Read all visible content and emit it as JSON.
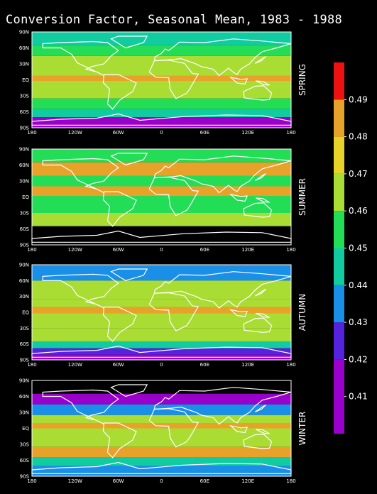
{
  "title": "Conversion Factor, Seasonal Mean, 1983 - 1988",
  "chart_data": {
    "type": "heatmap",
    "title": "Conversion Factor, Seasonal Mean, 1983 - 1988",
    "xticks": [
      "180",
      "120W",
      "60W",
      "0",
      "60E",
      "120E",
      "180"
    ],
    "yticks": [
      "90N",
      "60N",
      "30N",
      "EQ",
      "30S",
      "60S",
      "90S"
    ],
    "panels": [
      {
        "name": "SPRING",
        "zonal": [
          {
            "lat": [
              90,
              65
            ],
            "value": 0.445
          },
          {
            "lat": [
              65,
              45
            ],
            "value": 0.455
          },
          {
            "lat": [
              45,
              20
            ],
            "value": 0.468
          },
          {
            "lat": [
              20,
              8
            ],
            "value": 0.462
          },
          {
            "lat": [
              8,
              -2
            ],
            "value": 0.485
          },
          {
            "lat": [
              -2,
              -35
            ],
            "value": 0.468
          },
          {
            "lat": [
              -35,
              -55
            ],
            "value": 0.455
          },
          {
            "lat": [
              -55,
              -70
            ],
            "value": 0.44
          },
          {
            "lat": [
              -70,
              -90
            ],
            "value": 0.415
          }
        ]
      },
      {
        "name": "SUMMER",
        "zonal": [
          {
            "lat": [
              90,
              65
            ],
            "value": 0.458
          },
          {
            "lat": [
              65,
              40
            ],
            "value": 0.485
          },
          {
            "lat": [
              40,
              20
            ],
            "value": 0.455
          },
          {
            "lat": [
              20,
              2
            ],
            "value": 0.485
          },
          {
            "lat": [
              2,
              -30
            ],
            "value": 0.458
          },
          {
            "lat": [
              -30,
              -55
            ],
            "value": 0.465
          },
          {
            "lat": [
              -55,
              -90
            ],
            "value": null
          }
        ]
      },
      {
        "name": "AUTUMN",
        "zonal": [
          {
            "lat": [
              90,
              60
            ],
            "value": 0.435
          },
          {
            "lat": [
              60,
              25
            ],
            "value": 0.46
          },
          {
            "lat": [
              25,
              10
            ],
            "value": 0.468
          },
          {
            "lat": [
              10,
              -2
            ],
            "value": 0.485
          },
          {
            "lat": [
              -2,
              -30
            ],
            "value": 0.462
          },
          {
            "lat": [
              -30,
              -55
            ],
            "value": 0.465
          },
          {
            "lat": [
              -55,
              -68
            ],
            "value": 0.445
          },
          {
            "lat": [
              -68,
              -80
            ],
            "value": 0.425
          },
          {
            "lat": [
              -80,
              -90
            ],
            "value": 0.41
          }
        ]
      },
      {
        "name": "WINTER",
        "zonal": [
          {
            "lat": [
              90,
              65
            ],
            "value": null
          },
          {
            "lat": [
              65,
              45
            ],
            "value": 0.415
          },
          {
            "lat": [
              45,
              25
            ],
            "value": 0.43
          },
          {
            "lat": [
              25,
              10
            ],
            "value": 0.462
          },
          {
            "lat": [
              10,
              0
            ],
            "value": 0.485
          },
          {
            "lat": [
              0,
              -35
            ],
            "value": 0.468
          },
          {
            "lat": [
              -35,
              -55
            ],
            "value": 0.48
          },
          {
            "lat": [
              -55,
              -70
            ],
            "value": 0.445
          },
          {
            "lat": [
              -70,
              -90
            ],
            "value": 0.43
          }
        ]
      }
    ],
    "colorbar": {
      "labels": [
        "0.49",
        "0.48",
        "0.47",
        "0.46",
        "0.45",
        "0.44",
        "0.43",
        "0.42",
        "0.41"
      ],
      "boundaries": [
        0.4,
        0.42,
        0.43,
        0.44,
        0.45,
        0.46,
        0.47,
        0.48,
        0.49,
        0.5
      ],
      "colors": [
        "#9900cc",
        "#5522dd",
        "#1a8fe8",
        "#11cca0",
        "#22dd55",
        "#aadd33",
        "#e8d22a",
        "#e8a22a",
        "#ee1111",
        "#dd1166"
      ]
    }
  }
}
